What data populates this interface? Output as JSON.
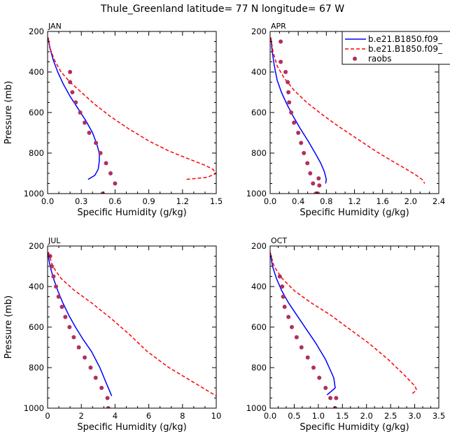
{
  "chart_data": {
    "type": "line",
    "title": "Thule_Greenland  latitude= 77 N longitude= 67 W",
    "legend": {
      "position": "top-right",
      "entries": [
        {
          "label": "b.e21.B1850.f09_",
          "color": "#0000ff",
          "dash": "solid",
          "marker": "none"
        },
        {
          "label": "b.e21.B1850.f09_",
          "color": "#ff0000",
          "dash": "dashed",
          "marker": "none"
        },
        {
          "label": "raobs",
          "color": "#b03060",
          "dash": "none",
          "marker": "dot"
        }
      ]
    },
    "panels": [
      {
        "title": "JAN",
        "xlabel": "Specific Humidity (g/kg)",
        "ylabel": "Pressure (mb)",
        "xlim": [
          0,
          1.5
        ],
        "ylim": [
          200,
          1000
        ],
        "xticks": [
          "0.0",
          "0.3",
          "0.6",
          "0.9",
          "1.2",
          "1.5"
        ],
        "yticks": [
          "200",
          "400",
          "600",
          "800",
          "1000"
        ],
        "series": [
          {
            "name": "b.e21.B1850.f09_ (solid)",
            "color": "#0000ff",
            "dash": "solid",
            "x": [
              0.005,
              0.02,
              0.05,
              0.09,
              0.14,
              0.2,
              0.27,
              0.34,
              0.4,
              0.44,
              0.46,
              0.46,
              0.45,
              0.42,
              0.36
            ],
            "y": [
              230,
              280,
              340,
              400,
              460,
              520,
              580,
              640,
              700,
              760,
              800,
              840,
              880,
              910,
              930
            ]
          },
          {
            "name": "b.e21.B1850.f09_ (dashed)",
            "color": "#ff0000",
            "dash": "dashed",
            "x": [
              0.005,
              0.02,
              0.06,
              0.12,
              0.2,
              0.3,
              0.42,
              0.56,
              0.72,
              0.9,
              1.08,
              1.26,
              1.4,
              1.47,
              1.5,
              1.42,
              1.23
            ],
            "y": [
              230,
              280,
              340,
              400,
              450,
              500,
              560,
              620,
              680,
              740,
              790,
              830,
              860,
              880,
              900,
              920,
              930
            ]
          },
          {
            "name": "raobs",
            "color": "#b03060",
            "dash": "none",
            "marker": "dot",
            "x": [
              0.2,
              0.2,
              0.22,
              0.25,
              0.29,
              0.33,
              0.37,
              0.43,
              0.47,
              0.52,
              0.56,
              0.6,
              0.49
            ],
            "y": [
              400,
              450,
              500,
              550,
              600,
              650,
              700,
              750,
              800,
              850,
              900,
              950,
              1000
            ]
          }
        ]
      },
      {
        "title": "APR",
        "xlabel": "Specific Humidity (g/kg)",
        "ylabel": "",
        "xlim": [
          0,
          2.4
        ],
        "ylim": [
          200,
          1000
        ],
        "xticks": [
          "0.0",
          "0.4",
          "0.8",
          "1.2",
          "1.6",
          "2.0",
          "2.4"
        ],
        "yticks": [
          "200",
          "400",
          "600",
          "800",
          "1000"
        ],
        "series": [
          {
            "name": "b.e21.B1850.f09_ (solid)",
            "color": "#0000ff",
            "dash": "solid",
            "x": [
              0.01,
              0.03,
              0.06,
              0.1,
              0.16,
              0.24,
              0.33,
              0.43,
              0.54,
              0.64,
              0.72,
              0.77,
              0.8,
              0.79
            ],
            "y": [
              230,
              300,
              370,
              440,
              500,
              560,
              620,
              680,
              740,
              800,
              850,
              890,
              930,
              950
            ]
          },
          {
            "name": "b.e21.B1850.f09_ (dashed)",
            "color": "#ff0000",
            "dash": "dashed",
            "x": [
              0.01,
              0.04,
              0.1,
              0.2,
              0.34,
              0.52,
              0.74,
              0.98,
              1.24,
              1.5,
              1.74,
              1.94,
              2.08,
              2.16,
              2.2
            ],
            "y": [
              230,
              300,
              370,
              430,
              490,
              550,
              610,
              670,
              730,
              790,
              840,
              880,
              910,
              930,
              950
            ]
          },
          {
            "name": "raobs",
            "color": "#b03060",
            "dash": "none",
            "marker": "dot",
            "x": [
              0.15,
              0.15,
              0.22,
              0.25,
              0.26,
              0.27,
              0.3,
              0.34,
              0.4,
              0.44,
              0.48,
              0.53,
              0.57,
              0.61,
              0.65,
              0.69,
              0.7,
              0.68
            ],
            "y": [
              250,
              350,
              400,
              450,
              500,
              550,
              600,
              650,
              700,
              750,
              800,
              850,
              900,
              950,
              1000,
              925,
              960,
              1000
            ]
          }
        ]
      },
      {
        "title": "JUL",
        "xlabel": "Specific Humidity (g/kg)",
        "ylabel": "Pressure (mb)",
        "xlim": [
          0,
          10
        ],
        "ylim": [
          200,
          1000
        ],
        "xticks": [
          "0",
          "2",
          "4",
          "6",
          "8",
          "10"
        ],
        "yticks": [
          "200",
          "400",
          "600",
          "800",
          "1000"
        ],
        "series": [
          {
            "name": "b.e21.B1850.f09_ (solid)",
            "color": "#0000ff",
            "dash": "solid",
            "x": [
              0.0,
              0.15,
              0.35,
              0.6,
              0.9,
              1.25,
              1.65,
              2.1,
              2.6,
              3.1,
              3.5,
              3.8
            ],
            "y": [
              230,
              300,
              360,
              420,
              480,
              540,
              600,
              660,
              720,
              800,
              880,
              940
            ]
          },
          {
            "name": "b.e21.B1850.f09_ (dashed)",
            "color": "#ff0000",
            "dash": "dashed",
            "x": [
              0.05,
              0.3,
              0.8,
              1.6,
              2.6,
              3.8,
              4.9,
              5.9,
              7.2,
              8.6,
              9.6,
              10.0
            ],
            "y": [
              230,
              300,
              360,
              420,
              480,
              560,
              640,
              720,
              800,
              870,
              920,
              940
            ]
          },
          {
            "name": "raobs",
            "color": "#b03060",
            "dash": "none",
            "marker": "dot",
            "x": [
              0.15,
              0.25,
              0.35,
              0.5,
              0.65,
              0.85,
              1.05,
              1.3,
              1.55,
              1.85,
              2.2,
              2.55,
              2.85,
              3.2,
              3.55,
              3.6
            ],
            "y": [
              250,
              300,
              350,
              400,
              450,
              500,
              550,
              600,
              650,
              700,
              750,
              800,
              850,
              900,
              950,
              1000
            ]
          }
        ]
      },
      {
        "title": "OCT",
        "xlabel": "Specific Humidity (g/kg)",
        "ylabel": "",
        "xlim": [
          0,
          3.5
        ],
        "ylim": [
          200,
          1000
        ],
        "xticks": [
          "0.0",
          "0.5",
          "1.0",
          "1.5",
          "2.0",
          "2.5",
          "3.0",
          "3.5"
        ],
        "yticks": [
          "200",
          "400",
          "600",
          "800",
          "1000"
        ],
        "series": [
          {
            "name": "b.e21.B1850.f09_ (solid)",
            "color": "#0000ff",
            "dash": "solid",
            "x": [
              0.0,
              0.05,
              0.13,
              0.24,
              0.38,
              0.55,
              0.75,
              0.95,
              1.15,
              1.32,
              1.35,
              1.18
            ],
            "y": [
              230,
              300,
              360,
              420,
              480,
              540,
              610,
              680,
              760,
              850,
              900,
              935
            ]
          },
          {
            "name": "b.e21.B1850.f09_ (dashed)",
            "color": "#ff0000",
            "dash": "dashed",
            "x": [
              0.0,
              0.08,
              0.25,
              0.5,
              0.85,
              1.25,
              1.65,
              2.05,
              2.45,
              2.8,
              3.0,
              3.04,
              2.92
            ],
            "y": [
              230,
              300,
              360,
              420,
              480,
              540,
              610,
              680,
              760,
              840,
              890,
              910,
              935
            ]
          },
          {
            "name": "raobs",
            "color": "#b03060",
            "dash": "none",
            "marker": "dot",
            "x": [
              0.2,
              0.25,
              0.27,
              0.3,
              0.38,
              0.45,
              0.55,
              0.65,
              0.78,
              0.9,
              1.02,
              1.15,
              1.25,
              1.35,
              1.37
            ],
            "y": [
              350,
              400,
              450,
              500,
              550,
              600,
              650,
              700,
              750,
              800,
              850,
              900,
              950,
              1000,
              950
            ]
          }
        ]
      }
    ]
  }
}
